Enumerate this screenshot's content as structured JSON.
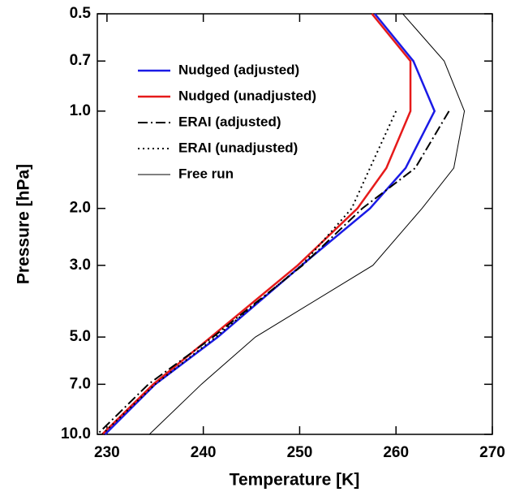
{
  "chart_data": {
    "type": "line",
    "xlabel": "Temperature [K]",
    "ylabel": "Pressure [hPa]",
    "y": [
      0.5,
      0.7,
      1.0,
      1.5,
      2.0,
      3.0,
      5.0,
      7.0,
      10.0
    ],
    "xlim": [
      229,
      270
    ],
    "xticks": [
      230,
      240,
      250,
      260,
      270
    ],
    "ylim": [
      0.5,
      10.0
    ],
    "ylog": true,
    "yinverted": true,
    "yticks": [
      0.5,
      0.7,
      {
        "value": 1.0,
        "label": "1.0"
      },
      {
        "value": 2.0,
        "label": "2.0"
      },
      {
        "value": 3.0,
        "label": "3.0"
      },
      {
        "value": 5.0,
        "label": "5.0"
      },
      {
        "value": 7.0,
        "label": "7.0"
      },
      {
        "value": 10.0,
        "label": "10.0"
      }
    ],
    "legend": "upper left",
    "series": [
      {
        "name": "Nudged (adjusted)",
        "color": "#1a1ae6",
        "dash": "solid",
        "width": 2.5,
        "values": [
          257.8,
          261.8,
          264.0,
          261.0,
          257.3,
          250.2,
          241.5,
          235.0,
          229.8
        ]
      },
      {
        "name": "Nudged (unadjusted)",
        "color": "#e61a1a",
        "dash": "solid",
        "width": 2.5,
        "values": [
          257.5,
          261.5,
          261.5,
          259.0,
          256.0,
          249.8,
          240.8,
          234.8,
          229.5
        ]
      },
      {
        "name": "ERAI (adjusted)",
        "color": "#000000",
        "dash": "dashdot",
        "width": 2,
        "values": [
          null,
          null,
          265.5,
          262.0,
          256.5,
          250.3,
          241.0,
          234.3,
          229.0
        ]
      },
      {
        "name": "ERAI (unadjusted)",
        "color": "#000000",
        "dash": "dot",
        "width": 2,
        "values": [
          null,
          null,
          260.0,
          257.3,
          255.4,
          250.2,
          241.3,
          235.0,
          229.5
        ]
      },
      {
        "name": "Free run",
        "color": "#000000",
        "dash": "solid",
        "width": 1,
        "values": [
          260.7,
          265.0,
          267.1,
          266.0,
          262.7,
          257.6,
          245.4,
          239.8,
          234.4
        ]
      }
    ]
  }
}
